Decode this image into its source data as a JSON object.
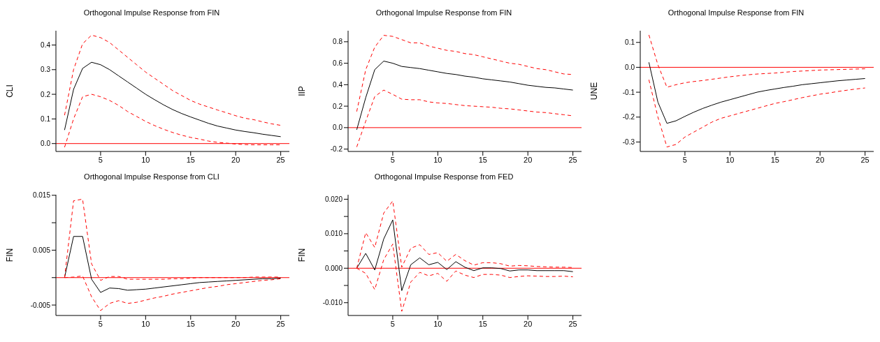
{
  "chart_data": [
    {
      "type": "line",
      "title": "Orthogonal Impulse Response from FIN",
      "ylabel": "CLI",
      "x": [
        1,
        2,
        3,
        4,
        5,
        6,
        7,
        8,
        9,
        10,
        11,
        12,
        13,
        14,
        15,
        16,
        17,
        18,
        19,
        20,
        21,
        22,
        23,
        24,
        25
      ],
      "xlim": [
        0.04,
        25.96
      ],
      "xticks": [
        5,
        10,
        15,
        20,
        25
      ],
      "ylim": [
        -0.032,
        0.458
      ],
      "yticks": [
        {
          "value": 0,
          "label": "0.0"
        },
        0.1,
        0.2,
        0.3,
        0.4
      ],
      "ref_lines": [
        {
          "axis": "y",
          "value": 0,
          "color": "#ff0000"
        }
      ],
      "series": [
        {
          "color": "#000000",
          "line_style": "solid",
          "values": [
            0.055,
            0.22,
            0.305,
            0.33,
            0.32,
            0.3,
            0.275,
            0.25,
            0.225,
            0.2,
            0.178,
            0.157,
            0.138,
            0.122,
            0.108,
            0.095,
            0.082,
            0.071,
            0.063,
            0.055,
            0.049,
            0.044,
            0.038,
            0.033,
            0.028
          ]
        },
        {
          "color": "#ff0000",
          "line_style": "dashed",
          "values": [
            0.115,
            0.3,
            0.405,
            0.44,
            0.43,
            0.41,
            0.38,
            0.35,
            0.32,
            0.29,
            0.265,
            0.24,
            0.215,
            0.195,
            0.175,
            0.16,
            0.148,
            0.136,
            0.125,
            0.113,
            0.103,
            0.097,
            0.088,
            0.08,
            0.074
          ]
        },
        {
          "color": "#ff0000",
          "line_style": "dashed",
          "values": [
            -0.015,
            0.1,
            0.19,
            0.2,
            0.19,
            0.175,
            0.155,
            0.13,
            0.11,
            0.09,
            0.073,
            0.058,
            0.045,
            0.034,
            0.025,
            0.018,
            0.01,
            0.005,
            0.002,
            -0.002,
            -0.004,
            -0.005,
            -0.005,
            -0.005,
            -0.005
          ]
        }
      ]
    },
    {
      "type": "line",
      "title": "Orthogonal Impulse Response from FIN",
      "ylabel": "IIP",
      "x": [
        1,
        2,
        3,
        4,
        5,
        6,
        7,
        8,
        9,
        10,
        11,
        12,
        13,
        14,
        15,
        16,
        17,
        18,
        19,
        20,
        21,
        22,
        23,
        24,
        25
      ],
      "xlim": [
        0.04,
        25.96
      ],
      "xticks": [
        5,
        10,
        15,
        20,
        25
      ],
      "ylim": [
        -0.222,
        0.903
      ],
      "yticks": [
        -0.2,
        {
          "value": 0,
          "label": "0.0"
        },
        0.2,
        0.4,
        0.6,
        0.8
      ],
      "ref_lines": [
        {
          "axis": "y",
          "value": 0,
          "color": "#ff0000"
        }
      ],
      "series": [
        {
          "color": "#000000",
          "line_style": "solid",
          "values": [
            -0.02,
            0.28,
            0.54,
            0.62,
            0.6,
            0.57,
            0.56,
            0.55,
            0.535,
            0.52,
            0.505,
            0.495,
            0.48,
            0.47,
            0.455,
            0.445,
            0.435,
            0.425,
            0.41,
            0.395,
            0.385,
            0.375,
            0.37,
            0.36,
            0.35
          ]
        },
        {
          "color": "#ff0000",
          "line_style": "dashed",
          "values": [
            0.15,
            0.54,
            0.75,
            0.86,
            0.85,
            0.82,
            0.79,
            0.79,
            0.76,
            0.74,
            0.72,
            0.71,
            0.69,
            0.68,
            0.66,
            0.64,
            0.62,
            0.6,
            0.59,
            0.57,
            0.55,
            0.54,
            0.52,
            0.5,
            0.495
          ]
        },
        {
          "color": "#ff0000",
          "line_style": "dashed",
          "values": [
            -0.18,
            0.06,
            0.29,
            0.35,
            0.31,
            0.265,
            0.26,
            0.26,
            0.24,
            0.23,
            0.225,
            0.215,
            0.205,
            0.2,
            0.195,
            0.19,
            0.18,
            0.175,
            0.165,
            0.155,
            0.145,
            0.14,
            0.13,
            0.12,
            0.11
          ]
        }
      ]
    },
    {
      "type": "line",
      "title": "Orthogonal Impulse Response from FIN",
      "ylabel": "UNE",
      "x": [
        1,
        2,
        3,
        4,
        5,
        6,
        7,
        8,
        9,
        10,
        11,
        12,
        13,
        14,
        15,
        16,
        17,
        18,
        19,
        20,
        21,
        22,
        23,
        24,
        25
      ],
      "xlim": [
        0.04,
        25.96
      ],
      "xticks": [
        5,
        10,
        15,
        20,
        25
      ],
      "ylim": [
        -0.338,
        0.147
      ],
      "yticks": [
        -0.3,
        -0.2,
        -0.1,
        {
          "value": 0,
          "label": "0.0"
        },
        0.1
      ],
      "ref_lines": [
        {
          "axis": "y",
          "value": 0,
          "color": "#ff0000"
        }
      ],
      "series": [
        {
          "color": "#000000",
          "line_style": "solid",
          "values": [
            0.02,
            -0.14,
            -0.225,
            -0.215,
            -0.197,
            -0.18,
            -0.165,
            -0.152,
            -0.14,
            -0.13,
            -0.12,
            -0.11,
            -0.1,
            -0.093,
            -0.087,
            -0.081,
            -0.076,
            -0.07,
            -0.066,
            -0.062,
            -0.058,
            -0.054,
            -0.051,
            -0.048,
            -0.045
          ]
        },
        {
          "color": "#ff0000",
          "line_style": "dashed",
          "values": [
            0.13,
            0.01,
            -0.08,
            -0.07,
            -0.062,
            -0.057,
            -0.053,
            -0.048,
            -0.043,
            -0.038,
            -0.034,
            -0.03,
            -0.027,
            -0.025,
            -0.023,
            -0.02,
            -0.017,
            -0.015,
            -0.013,
            -0.011,
            -0.01,
            -0.009,
            -0.008,
            -0.007,
            -0.006
          ]
        },
        {
          "color": "#ff0000",
          "line_style": "dashed",
          "values": [
            -0.05,
            -0.2,
            -0.32,
            -0.31,
            -0.28,
            -0.26,
            -0.24,
            -0.22,
            -0.205,
            -0.195,
            -0.185,
            -0.175,
            -0.165,
            -0.155,
            -0.145,
            -0.138,
            -0.13,
            -0.122,
            -0.115,
            -0.108,
            -0.103,
            -0.097,
            -0.092,
            -0.087,
            -0.083
          ]
        }
      ]
    },
    {
      "type": "line",
      "title": "Orthogonal Impulse Response from CLI",
      "ylabel": "FIN",
      "x": [
        1,
        2,
        3,
        4,
        5,
        6,
        7,
        8,
        9,
        10,
        11,
        12,
        13,
        14,
        15,
        16,
        17,
        18,
        19,
        20,
        21,
        22,
        23,
        24,
        25
      ],
      "xlim": [
        0.04,
        25.96
      ],
      "xticks": [
        5,
        10,
        15,
        20,
        25
      ],
      "ylim": [
        -0.0069,
        0.0151
      ],
      "yticks": [
        -0.005,
        {
          "value": 0,
          "label": null
        },
        0.005,
        {
          "value": 0.01,
          "label": null
        },
        0.015
      ],
      "ref_lines": [
        {
          "axis": "y",
          "value": 0,
          "color": "#ff0000"
        }
      ],
      "series": [
        {
          "color": "#000000",
          "line_style": "solid",
          "values": [
            0,
            0.0075,
            0.0075,
            -0.0003,
            -0.0027,
            -0.0019,
            -0.002,
            -0.0023,
            -0.0022,
            -0.0021,
            -0.0019,
            -0.0017,
            -0.0015,
            -0.0013,
            -0.0011,
            -0.0009,
            -0.0008,
            -0.0007,
            -0.0006,
            -0.0005,
            -0.0004,
            -0.0003,
            -0.0002,
            -0.0002,
            -0.0001
          ]
        },
        {
          "color": "#ff0000",
          "line_style": "dashed",
          "values": [
            0,
            0.014,
            0.0143,
            0.0025,
            -0.0005,
            0.0002,
            0.0002,
            -0.0003,
            -0.0003,
            -0.0003,
            -0.0003,
            -0.0003,
            -0.0002,
            -0.0002,
            -0.0001,
            0,
            0,
            0,
            0,
            0,
            0,
            0.0001,
            0.0001,
            0.0001,
            0.0001
          ]
        },
        {
          "color": "#ff0000",
          "line_style": "dashed",
          "values": [
            0,
            0.0001,
            0.0003,
            -0.0035,
            -0.006,
            -0.0047,
            -0.0042,
            -0.0047,
            -0.0045,
            -0.0041,
            -0.0037,
            -0.0034,
            -0.003,
            -0.0027,
            -0.0024,
            -0.0021,
            -0.0018,
            -0.0016,
            -0.0013,
            -0.0011,
            -0.0009,
            -0.0007,
            -0.0005,
            -0.0004,
            -0.0002
          ]
        }
      ]
    },
    {
      "type": "line",
      "title": "Orthogonal Impulse Response from FED",
      "ylabel": "FIN",
      "x": [
        1,
        2,
        3,
        4,
        5,
        6,
        7,
        8,
        9,
        10,
        11,
        12,
        13,
        14,
        15,
        16,
        17,
        18,
        19,
        20,
        21,
        22,
        23,
        24,
        25
      ],
      "xlim": [
        0.04,
        25.96
      ],
      "xticks": [
        5,
        10,
        15,
        20,
        25
      ],
      "ylim": [
        -0.0137,
        0.0213
      ],
      "yticks": [
        {
          "value": -0.01,
          "label": "-0.010"
        },
        {
          "value": -0.005,
          "label": null
        },
        {
          "value": 0,
          "label": "0.000"
        },
        {
          "value": 0.005,
          "label": null
        },
        {
          "value": 0.01,
          "label": "0.010"
        },
        {
          "value": 0.015,
          "label": null
        },
        {
          "value": 0.02,
          "label": "0.020"
        }
      ],
      "ref_lines": [
        {
          "axis": "y",
          "value": 0,
          "color": "#ff0000"
        }
      ],
      "series": [
        {
          "color": "#000000",
          "line_style": "solid",
          "values": [
            0,
            0.0043,
            -0.0005,
            0.0085,
            0.014,
            -0.0065,
            0.001,
            0.003,
            0.001,
            0.0017,
            -0.0004,
            0.0019,
            0.0003,
            -0.0007,
            0.0001,
            0.0001,
            -0.0001,
            -0.0008,
            -0.0005,
            -0.0005,
            -0.0007,
            -0.0007,
            -0.0007,
            -0.0007,
            -0.001
          ]
        },
        {
          "color": "#ff0000",
          "line_style": "dashed",
          "values": [
            0,
            0.0103,
            0.006,
            0.016,
            0.0195,
            0.0003,
            0.0058,
            0.0068,
            0.004,
            0.0045,
            0.002,
            0.004,
            0.0022,
            0.0009,
            0.0016,
            0.0016,
            0.0013,
            0.0006,
            0.0008,
            0.0007,
            0.0005,
            0.0004,
            0.0003,
            0.0003,
            0.0002
          ]
        },
        {
          "color": "#ff0000",
          "line_style": "dashed",
          "values": [
            0,
            -0.0015,
            -0.0062,
            0.0025,
            0.007,
            -0.0125,
            -0.004,
            -0.0012,
            -0.0022,
            -0.0015,
            -0.0038,
            -0.0008,
            -0.002,
            -0.0027,
            -0.0018,
            -0.0018,
            -0.002,
            -0.0027,
            -0.0024,
            -0.0022,
            -0.0023,
            -0.0024,
            -0.0024,
            -0.0023,
            -0.0025
          ]
        }
      ]
    }
  ]
}
